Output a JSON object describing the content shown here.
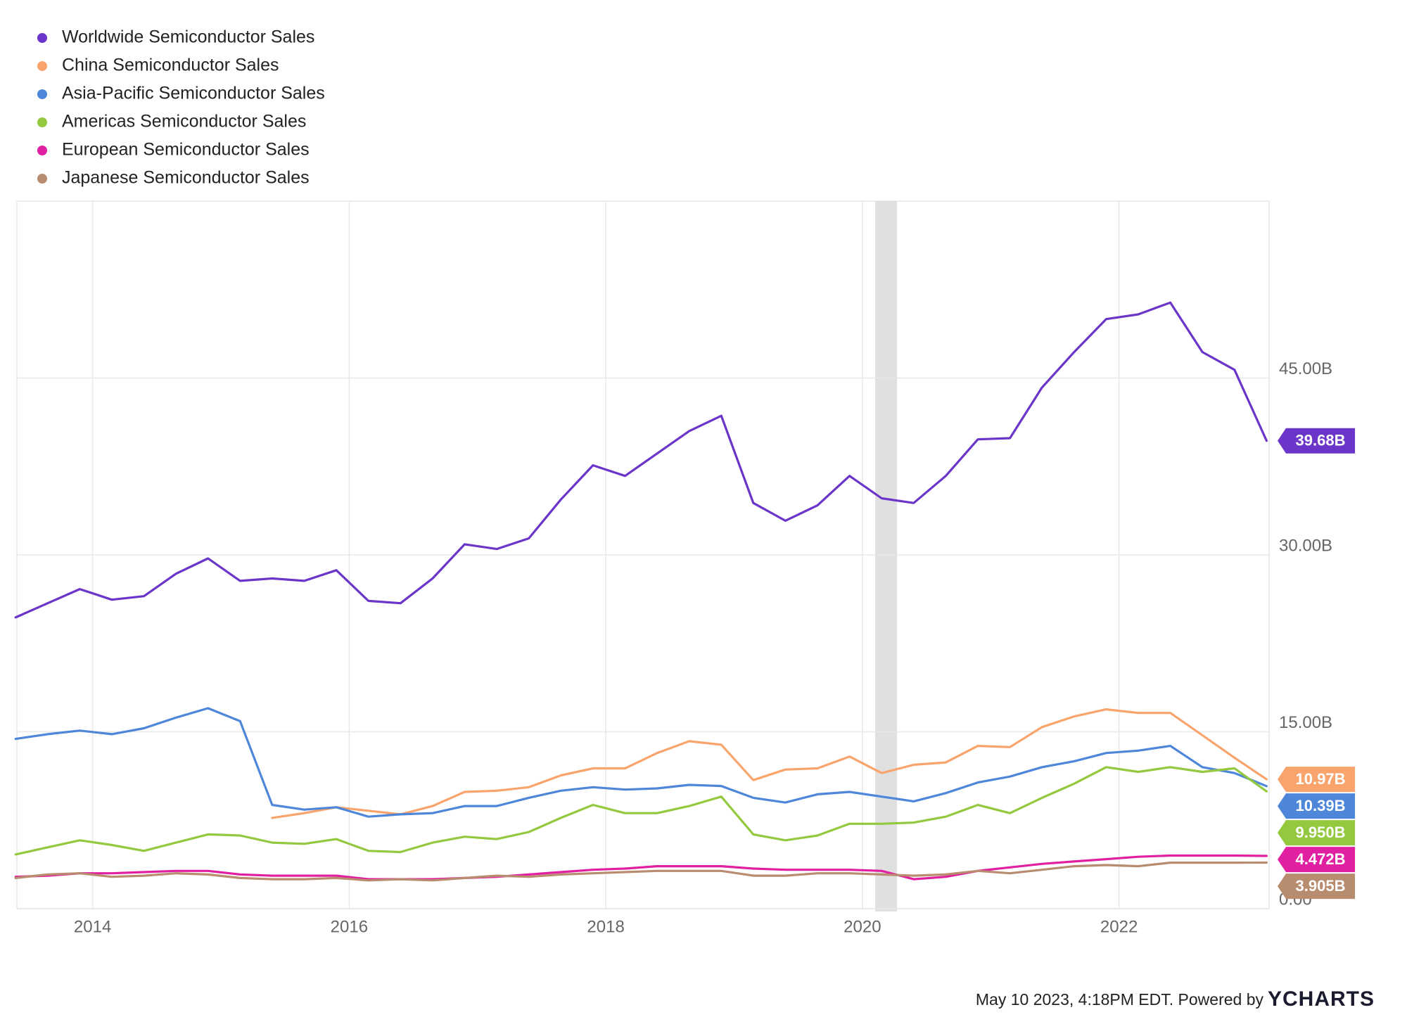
{
  "chart_data": {
    "type": "line",
    "x": [
      2013.4,
      2013.65,
      2013.9,
      2014.15,
      2014.4,
      2014.65,
      2014.9,
      2015.15,
      2015.4,
      2015.65,
      2015.9,
      2016.15,
      2016.4,
      2016.65,
      2016.9,
      2017.15,
      2017.4,
      2017.65,
      2017.9,
      2018.15,
      2018.4,
      2018.65,
      2018.9,
      2019.15,
      2019.4,
      2019.65,
      2019.9,
      2020.15,
      2020.4,
      2020.65,
      2020.9,
      2021.15,
      2021.4,
      2021.65,
      2021.9,
      2022.15,
      2022.4,
      2022.65,
      2022.9,
      2023.15
    ],
    "xlim": [
      2013.41,
      2023.17
    ],
    "xticks": [
      2014,
      2016,
      2018,
      2020,
      2022
    ],
    "ylim": [
      0,
      60
    ],
    "yticks": [
      {
        "value": 0,
        "label": "0.00"
      },
      {
        "value": 15,
        "label": "15.00B"
      },
      {
        "value": 30,
        "label": "30.00B"
      },
      {
        "value": 45,
        "label": "45.00B"
      }
    ],
    "grid": true,
    "legend": "top-left",
    "shaded_range": [
      2020.1,
      2020.27
    ],
    "series": [
      {
        "name": "Worldwide Semiconductor Sales",
        "color": "#6b35c9",
        "last_label": "39.68B",
        "values": [
          24.7,
          25.9,
          27.1,
          26.2,
          26.5,
          28.4,
          29.7,
          27.8,
          28.0,
          27.8,
          28.7,
          26.1,
          25.9,
          28.0,
          30.9,
          30.5,
          31.4,
          34.7,
          37.6,
          36.7,
          38.6,
          40.5,
          41.8,
          34.4,
          32.9,
          34.2,
          36.7,
          34.8,
          34.4,
          36.7,
          39.8,
          39.9,
          44.2,
          47.2,
          50.0,
          50.4,
          51.4,
          47.2,
          45.7,
          39.68
        ]
      },
      {
        "name": "China Semiconductor Sales",
        "color": "#f8a46c",
        "last_label": "10.97B",
        "values": [
          null,
          null,
          null,
          null,
          null,
          null,
          null,
          null,
          7.7,
          8.1,
          8.6,
          8.3,
          8.0,
          8.7,
          9.9,
          10.0,
          10.3,
          11.3,
          11.9,
          11.9,
          13.2,
          14.2,
          13.9,
          10.9,
          11.8,
          11.9,
          12.9,
          11.5,
          12.2,
          12.4,
          13.8,
          13.7,
          15.4,
          16.3,
          16.9,
          16.6,
          16.6,
          14.7,
          12.8,
          10.97
        ]
      },
      {
        "name": "Asia-Pacific Semiconductor Sales",
        "color": "#4e86d9",
        "last_label": "10.39B",
        "values": [
          14.4,
          14.8,
          15.1,
          14.8,
          15.3,
          16.2,
          17.0,
          15.9,
          8.8,
          8.4,
          8.6,
          7.8,
          8.0,
          8.1,
          8.7,
          8.7,
          9.4,
          10.0,
          10.3,
          10.1,
          10.2,
          10.5,
          10.4,
          9.4,
          9.0,
          9.7,
          9.9,
          9.5,
          9.1,
          9.8,
          10.7,
          11.2,
          12.0,
          12.5,
          13.2,
          13.4,
          13.8,
          12.0,
          11.5,
          10.39
        ]
      },
      {
        "name": "Americas Semiconductor Sales",
        "color": "#93c83f",
        "last_label": "9.950B",
        "values": [
          4.6,
          5.2,
          5.8,
          5.4,
          4.9,
          5.6,
          6.3,
          6.2,
          5.6,
          5.5,
          5.9,
          4.9,
          4.8,
          5.6,
          6.1,
          5.9,
          6.5,
          7.7,
          8.8,
          8.1,
          8.1,
          8.7,
          9.5,
          6.3,
          5.8,
          6.2,
          7.2,
          7.2,
          7.3,
          7.8,
          8.8,
          8.1,
          9.4,
          10.6,
          12.0,
          11.6,
          12.0,
          11.6,
          11.9,
          9.95
        ]
      },
      {
        "name": "European Semiconductor Sales",
        "color": "#e020a0",
        "last_label": "4.472B",
        "values": [
          2.7,
          2.8,
          3.0,
          3.0,
          3.1,
          3.2,
          3.2,
          2.9,
          2.8,
          2.8,
          2.8,
          2.5,
          2.5,
          2.5,
          2.6,
          2.7,
          2.9,
          3.1,
          3.3,
          3.4,
          3.6,
          3.6,
          3.6,
          3.4,
          3.3,
          3.3,
          3.3,
          3.2,
          2.5,
          2.7,
          3.2,
          3.5,
          3.8,
          4.0,
          4.2,
          4.4,
          4.5,
          4.5,
          4.5,
          4.472
        ]
      },
      {
        "name": "Japanese Semiconductor Sales",
        "color": "#b88c6e",
        "last_label": "3.905B",
        "values": [
          2.6,
          2.9,
          3.0,
          2.7,
          2.8,
          3.0,
          2.9,
          2.6,
          2.5,
          2.5,
          2.6,
          2.4,
          2.5,
          2.4,
          2.6,
          2.8,
          2.7,
          2.9,
          3.0,
          3.1,
          3.2,
          3.2,
          3.2,
          2.8,
          2.8,
          3.0,
          3.0,
          2.9,
          2.8,
          2.9,
          3.2,
          3.0,
          3.3,
          3.6,
          3.7,
          3.6,
          3.9,
          3.9,
          3.9,
          3.905
        ]
      }
    ],
    "footer": {
      "text": "May 10 2023, 4:18PM EDT. Powered by",
      "brand": "YCHARTS"
    }
  }
}
